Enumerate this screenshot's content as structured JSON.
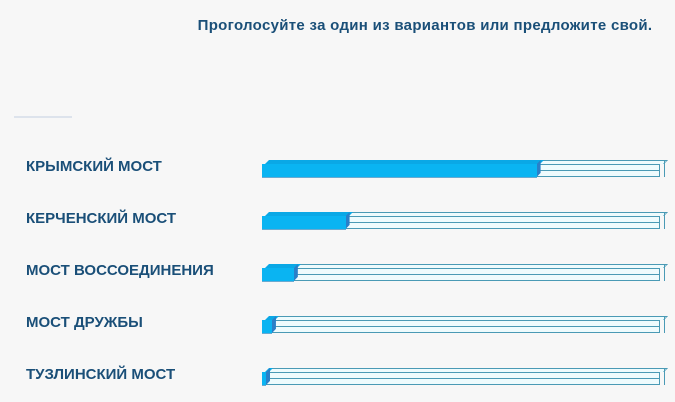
{
  "title": "Проголосуйте за один из вариантов или предложите свой.",
  "colors": {
    "fill": "#0ab4f2",
    "text": "#1a4f78",
    "track_border": "#4a9ab5"
  },
  "options": [
    {
      "label": "КРЫМСКИЙ МОСТ",
      "percent": 69
    },
    {
      "label": "КЕРЧЕНСКИЙ МОСТ",
      "percent": 21
    },
    {
      "label": "МОСТ ВОССОЕДИНЕНИЯ",
      "percent": 8
    },
    {
      "label": "МОСТ ДРУЖБЫ",
      "percent": 2.5
    },
    {
      "label": "ТУЗЛИНСКИЙ МОСТ",
      "percent": 0.5
    }
  ]
}
